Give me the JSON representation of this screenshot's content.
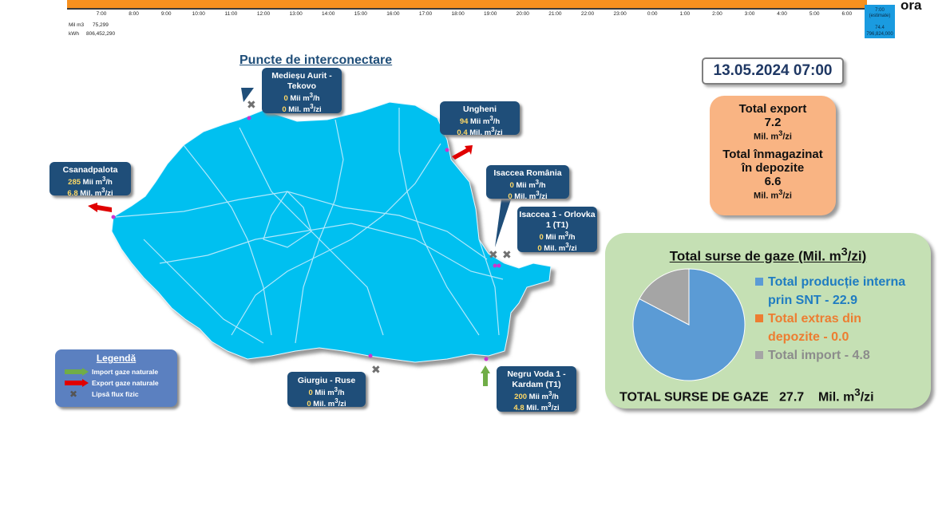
{
  "timeline": {
    "hours": [
      "7:00",
      "8:00",
      "9:00",
      "10:00",
      "11:00",
      "12:00",
      "13:00",
      "14:00",
      "15:00",
      "16:00",
      "17:00",
      "18:00",
      "19:00",
      "20:00",
      "21:00",
      "22:00",
      "23:00",
      "0:00",
      "1:00",
      "2:00",
      "3:00",
      "4:00",
      "5:00",
      "6:00"
    ],
    "axis_label": "ora",
    "estimate": {
      "hour": "7:00",
      "note": "(estimate)",
      "mil_m3": "74.4",
      "kwh": "796,824,000"
    },
    "units": [
      {
        "unit": "Mil m3",
        "value": "75,299"
      },
      {
        "unit": "kWh",
        "value": "806,452,290"
      }
    ]
  },
  "section_title": "Puncte de interconectare",
  "date": "13.05.2024 07:00",
  "totals_box": {
    "export_title": "Total export",
    "export_value": "7.2",
    "export_unit_base": "Mil. m",
    "export_unit_sup": "3",
    "export_unit_tail": "/zi",
    "storage_title_1": "Total înmagazinat",
    "storage_title_2": "în depozite",
    "storage_value": "6.6",
    "storage_unit_base": "Mil. m",
    "storage_unit_sup": "3",
    "storage_unit_tail": "/zi"
  },
  "sources": {
    "title_base": "Total surse de gaze  (Mil. m",
    "title_sup": "3",
    "title_tail": "/zi)",
    "items": [
      {
        "label_1": "Total producție interna",
        "label_2": "prin SNT - 22.9",
        "color": "#5b9bd5"
      },
      {
        "label_1": "Total extras din",
        "label_2": "depozite - 0.0",
        "color": "#ed7d31"
      },
      {
        "label_1": "Total import - 4.8",
        "label_2": "",
        "color": "#a5a5a5"
      }
    ],
    "pie_values": [
      22.9,
      0.0,
      4.8
    ],
    "total_label": "TOTAL SURSE DE GAZE",
    "total_value": "27.7",
    "total_unit_base": "Mil. m",
    "total_unit_sup": "3",
    "total_unit_tail": "/zi"
  },
  "points": {
    "medieu": {
      "name_1": "Medieșu Aurit -",
      "name_2": "Tekovo",
      "mii": "0",
      "mil": "0"
    },
    "ungheni": {
      "name_1": "Ungheni",
      "name_2": "",
      "mii": "94",
      "mil": "0.4"
    },
    "csanad": {
      "name_1": "Csanadpalota",
      "name_2": "",
      "mii": "285",
      "mil": "6.8"
    },
    "isaccea_ro": {
      "name_1": "Isaccea România",
      "name_2": "",
      "mii": "0",
      "mil": "0"
    },
    "isaccea_or": {
      "name_1": "Isaccea 1 - Orlovka",
      "name_2": "1 (T1)",
      "mii": "0",
      "mil": "0"
    },
    "giurgiu": {
      "name_1": "Giurgiu - Ruse",
      "name_2": "",
      "mii": "0",
      "mil": "0"
    },
    "negru": {
      "name_1": "Negru Voda 1 -",
      "name_2": "Kardam (T1)",
      "mii": "200",
      "mil": "4.8"
    }
  },
  "units": {
    "mii": "Mii  m",
    "mil": "Mil. m",
    "sup": "3",
    "h": "/h",
    "zi": "/zi"
  },
  "legend": {
    "title": "Legendă",
    "import": "Import gaze naturale",
    "export": "Export gaze naturale",
    "none": "Lipsă flux fizic"
  },
  "colors": {
    "map": "#00c0f0",
    "box": "#1f4e79",
    "import_arrow": "#70ad47",
    "export_arrow": "#e00000"
  }
}
